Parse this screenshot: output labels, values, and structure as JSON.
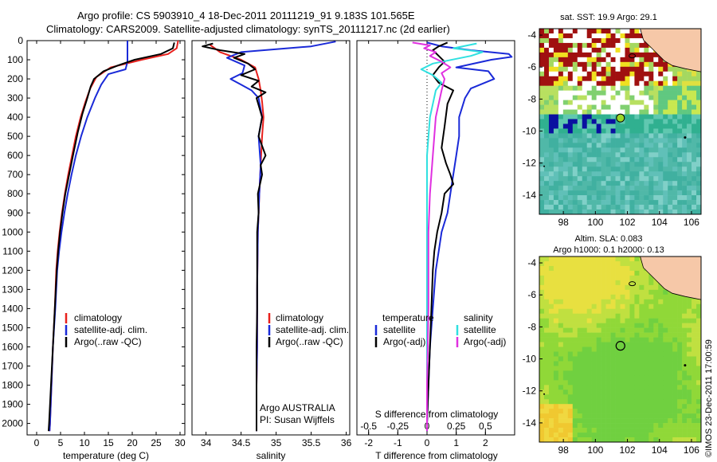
{
  "header": {
    "line1": "Argo profile: CS 5903910_4 18-Dec-2011 20111219_91 9.183S 101.565E",
    "line2": "Climatology: CARS2009. Satellite-adjusted climatology: synTS_20111217.nc (2d earlier)"
  },
  "colors": {
    "clim": "#e8201c",
    "sat": "#1a2ad8",
    "argo": "#000000",
    "sat_diff": "#30e0e0",
    "argo_diff": "#e030e0"
  },
  "depth_ticks": [
    "0",
    "100",
    "200",
    "300",
    "400",
    "500",
    "600",
    "700",
    "800",
    "900",
    "1000",
    "1100",
    "1200",
    "1300",
    "1400",
    "1500",
    "1600",
    "1700",
    "1800",
    "1900",
    "2000"
  ],
  "chart_data": [
    {
      "type": "line",
      "name": "temperature",
      "xlabel": "temperature (deg C)",
      "xlim": [
        -2,
        31
      ],
      "ylim": [
        2060,
        0
      ],
      "xticks": [
        "0",
        "5",
        "10",
        "15",
        "20",
        "25",
        "30"
      ],
      "legend": {
        "items": [
          "climatology",
          "satellite-adj. clim.",
          "Argo(..raw -QC)"
        ]
      },
      "series": [
        {
          "name": "climatology",
          "color": "clim",
          "points": [
            [
              29.6,
              0
            ],
            [
              29.3,
              40
            ],
            [
              27.5,
              70
            ],
            [
              22,
              100
            ],
            [
              15.5,
              140
            ],
            [
              12.5,
              190
            ],
            [
              11.2,
              250
            ],
            [
              10.2,
              320
            ],
            [
              9.2,
              400
            ],
            [
              8.2,
              500
            ],
            [
              7.4,
              600
            ],
            [
              6.6,
              700
            ],
            [
              5.9,
              800
            ],
            [
              5.3,
              900
            ],
            [
              4.8,
              1000
            ],
            [
              4.4,
              1100
            ],
            [
              4.1,
              1200
            ],
            [
              3.8,
              1400
            ],
            [
              3.4,
              1600
            ],
            [
              3.1,
              1800
            ],
            [
              2.8,
              2000
            ],
            [
              2.7,
              2040
            ]
          ]
        },
        {
          "name": "satellite-adj. clim.",
          "color": "sat",
          "points": [
            [
              19,
              0
            ],
            [
              19,
              70
            ],
            [
              19,
              110
            ],
            [
              18.6,
              150
            ],
            [
              15,
              175
            ],
            [
              13.5,
              230
            ],
            [
              12.2,
              300
            ],
            [
              10.6,
              400
            ],
            [
              9.3,
              500
            ],
            [
              8.2,
              600
            ],
            [
              7.3,
              700
            ],
            [
              6.5,
              800
            ],
            [
              5.8,
              900
            ],
            [
              5.2,
              1000
            ],
            [
              4.7,
              1100
            ],
            [
              4.3,
              1200
            ],
            [
              3.9,
              1400
            ],
            [
              3.4,
              1600
            ],
            [
              3.1,
              1800
            ],
            [
              2.8,
              2000
            ],
            [
              2.7,
              2040
            ]
          ]
        },
        {
          "name": "Argo(..raw -QC)",
          "color": "argo",
          "points": [
            [
              28.8,
              10
            ],
            [
              28.5,
              40
            ],
            [
              26,
              70
            ],
            [
              20.5,
              100
            ],
            [
              17,
              130
            ],
            [
              14,
              160
            ],
            [
              12,
              200
            ],
            [
              11.3,
              240
            ],
            [
              10.6,
              300
            ],
            [
              9.6,
              380
            ],
            [
              8.6,
              480
            ],
            [
              7.6,
              600
            ],
            [
              6.8,
              700
            ],
            [
              6.0,
              800
            ],
            [
              5.4,
              900
            ],
            [
              4.9,
              1000
            ],
            [
              4.5,
              1100
            ],
            [
              4.2,
              1200
            ],
            [
              3.8,
              1400
            ],
            [
              3.4,
              1600
            ],
            [
              3.0,
              1800
            ],
            [
              2.6,
              2000
            ],
            [
              2.5,
              2040
            ]
          ]
        }
      ]
    },
    {
      "type": "line",
      "name": "salinity",
      "xlabel": "salinity",
      "xlim": [
        33.8,
        36.05
      ],
      "ylim": [
        2060,
        0
      ],
      "xticks": [
        "34",
        "34.5",
        "35",
        "35.5",
        "36"
      ],
      "legend": {
        "items": [
          "climatology",
          "satellite-adj. clim.",
          "Argo(..raw -QC)"
        ]
      },
      "annotation": [
        "Argo AUSTRALIA",
        "PI: Susan Wijffels"
      ],
      "series": [
        {
          "name": "climatology",
          "color": "clim",
          "points": [
            [
              34.05,
              20
            ],
            [
              34.2,
              60
            ],
            [
              34.5,
              100
            ],
            [
              34.7,
              140
            ],
            [
              34.75,
              200
            ],
            [
              34.78,
              260
            ],
            [
              34.8,
              320
            ],
            [
              34.82,
              400
            ],
            [
              34.8,
              500
            ],
            [
              34.78,
              650
            ],
            [
              34.76,
              800
            ],
            [
              34.74,
              1000
            ],
            [
              34.73,
              1300
            ],
            [
              34.73,
              1600
            ],
            [
              34.72,
              1800
            ],
            [
              34.72,
              2000
            ],
            [
              34.72,
              2040
            ]
          ]
        },
        {
          "name": "satellite-adj. clim.",
          "color": "sat",
          "points": [
            [
              35.85,
              5
            ],
            [
              35.5,
              30
            ],
            [
              34.5,
              60
            ],
            [
              34.3,
              90
            ],
            [
              34.55,
              130
            ],
            [
              34.52,
              170
            ],
            [
              34.35,
              200
            ],
            [
              34.5,
              230
            ],
            [
              34.65,
              260
            ],
            [
              34.75,
              300
            ],
            [
              34.8,
              400
            ],
            [
              34.75,
              500
            ],
            [
              34.78,
              650
            ],
            [
              34.76,
              800
            ],
            [
              34.74,
              1000
            ],
            [
              34.73,
              1300
            ],
            [
              34.73,
              1600
            ],
            [
              34.72,
              1800
            ],
            [
              34.72,
              2000
            ],
            [
              34.72,
              2040
            ]
          ]
        },
        {
          "name": "Argo(..raw -QC)",
          "color": "argo",
          "points": [
            [
              34.1,
              15
            ],
            [
              33.95,
              30
            ],
            [
              34.2,
              50
            ],
            [
              34.55,
              70
            ],
            [
              34.4,
              90
            ],
            [
              34.6,
              120
            ],
            [
              34.7,
              150
            ],
            [
              34.5,
              180
            ],
            [
              34.75,
              210
            ],
            [
              34.65,
              240
            ],
            [
              34.85,
              270
            ],
            [
              34.72,
              300
            ],
            [
              34.8,
              400
            ],
            [
              34.75,
              500
            ],
            [
              34.85,
              600
            ],
            [
              34.78,
              650
            ],
            [
              34.8,
              700
            ],
            [
              34.74,
              800
            ],
            [
              34.75,
              900
            ],
            [
              34.73,
              1000
            ],
            [
              34.73,
              1200
            ],
            [
              34.73,
              1400
            ],
            [
              34.72,
              1600
            ],
            [
              34.72,
              1800
            ],
            [
              34.72,
              2000
            ],
            [
              34.72,
              2040
            ]
          ]
        }
      ]
    },
    {
      "type": "line",
      "name": "difference",
      "xlabel": "T difference from climatology",
      "xlabel_top": "S difference from climatology",
      "xlim": [
        -2.4,
        3
      ],
      "ylim": [
        2060,
        0
      ],
      "xticks": [
        "-2",
        "-1",
        "0",
        "1",
        "2"
      ],
      "xticks_s": [
        "-0.5",
        "-0.25",
        "0",
        "0.25",
        "0.5"
      ],
      "legend": {
        "headers": [
          "temperature",
          "salinity"
        ],
        "items": [
          "satellite",
          "Argo(-adj)",
          "satellite",
          "Argo(-adj)"
        ]
      },
      "series": [
        {
          "name": "temperature satellite",
          "color": "sat",
          "points": [
            [
              0,
              10
            ],
            [
              0.5,
              30
            ],
            [
              1.5,
              50
            ],
            [
              2.8,
              70
            ],
            [
              2.9,
              85
            ],
            [
              2.2,
              100
            ],
            [
              1,
              140
            ],
            [
              2.1,
              160
            ],
            [
              2.3,
              200
            ],
            [
              1.5,
              250
            ],
            [
              1.3,
              300
            ],
            [
              1.1,
              400
            ],
            [
              1.1,
              500
            ],
            [
              1.0,
              600
            ],
            [
              0.9,
              700
            ],
            [
              0.8,
              800
            ],
            [
              0.7,
              900
            ],
            [
              0.5,
              1000
            ],
            [
              0.4,
              1100
            ],
            [
              0.3,
              1200
            ],
            [
              0.2,
              1400
            ],
            [
              0.1,
              1600
            ],
            [
              0.05,
              1800
            ],
            [
              0,
              2000
            ],
            [
              0,
              2040
            ]
          ]
        },
        {
          "name": "temperature Argo(-adj)",
          "color": "argo",
          "points": [
            [
              0.7,
              10
            ],
            [
              0.4,
              30
            ],
            [
              0.2,
              50
            ],
            [
              0.4,
              80
            ],
            [
              0.6,
              110
            ],
            [
              0.4,
              140
            ],
            [
              0.2,
              180
            ],
            [
              0.4,
              220
            ],
            [
              0.9,
              260
            ],
            [
              0.7,
              330
            ],
            [
              0.6,
              450
            ],
            [
              0.5,
              560
            ],
            [
              0.65,
              640
            ],
            [
              0.8,
              700
            ],
            [
              0.9,
              750
            ],
            [
              0.6,
              800
            ],
            [
              0.5,
              900
            ],
            [
              0.35,
              1000
            ],
            [
              0.25,
              1100
            ],
            [
              0.2,
              1200
            ],
            [
              0.15,
              1400
            ],
            [
              0.1,
              1600
            ],
            [
              0.05,
              1800
            ],
            [
              0,
              2000
            ],
            [
              0,
              2040
            ]
          ]
        },
        {
          "name": "salinity satellite",
          "color": "sat_diff",
          "points": [
            [
              1.7,
              15
            ],
            [
              0.9,
              40
            ],
            [
              1.9,
              60
            ],
            [
              1.5,
              80
            ],
            [
              0.2,
              120
            ],
            [
              -0.2,
              150
            ],
            [
              0.2,
              180
            ],
            [
              0.5,
              220
            ],
            [
              0.3,
              260
            ],
            [
              0.1,
              400
            ],
            [
              0,
              600
            ],
            [
              0,
              1000
            ],
            [
              0,
              1400
            ],
            [
              0,
              1800
            ],
            [
              0,
              2040
            ]
          ]
        },
        {
          "name": "salinity Argo(-adj)",
          "color": "argo_diff",
          "points": [
            [
              -0.5,
              10
            ],
            [
              0.1,
              25
            ],
            [
              -0.1,
              40
            ],
            [
              0.3,
              60
            ],
            [
              0.1,
              80
            ],
            [
              0.5,
              110
            ],
            [
              0.8,
              140
            ],
            [
              0.5,
              170
            ],
            [
              0.6,
              200
            ],
            [
              0.5,
              260
            ],
            [
              0.3,
              400
            ],
            [
              0.2,
              600
            ],
            [
              0.1,
              800
            ],
            [
              0.05,
              1000
            ],
            [
              0.05,
              1400
            ],
            [
              0,
              1800
            ],
            [
              0,
              2040
            ]
          ]
        }
      ]
    },
    {
      "type": "heatmap",
      "name": "sst_map",
      "title": "sat. SST: 19.9 Argo: 29.1",
      "xlim": [
        96.5,
        106.6
      ],
      "ylim": [
        -15.2,
        -3.6
      ],
      "xticks": [
        "98",
        "100",
        "102",
        "104",
        "106"
      ],
      "yticks": [
        "-4",
        "-6",
        "-8",
        "-10",
        "-12",
        "-14"
      ],
      "argo_position": [
        101.565,
        -9.183
      ]
    },
    {
      "type": "heatmap",
      "name": "sla_map",
      "title": "Altim. SLA: 0.083",
      "subtitle": "Argo h1000: 0.1 h2000: 0.13",
      "xlim": [
        96.5,
        106.6
      ],
      "ylim": [
        -15.2,
        -3.6
      ],
      "xticks": [
        "98",
        "100",
        "102",
        "104",
        "106"
      ],
      "yticks": [
        "-4",
        "-6",
        "-8",
        "-10",
        "-12",
        "-14"
      ],
      "argo_position": [
        101.565,
        -9.183
      ]
    }
  ],
  "credit": "©IMOS 23-Dec-2011 17:00:59"
}
